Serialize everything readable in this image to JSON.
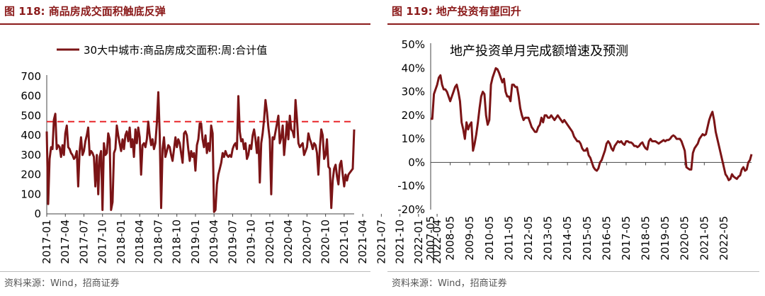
{
  "panels": [
    {
      "title": "图 118:  商品房成交面积触底反弹",
      "source": "资料来源：Wind，招商证券"
    },
    {
      "title": "图 119:  地产投资有望回升",
      "source": "资料来源：Wind，招商证券"
    }
  ],
  "colors": {
    "series": "#7b1416",
    "reference": "#e8262a",
    "title": "#8b1a1a"
  },
  "chart_data": [
    {
      "type": "line",
      "legend_position": "top",
      "series": [
        {
          "name": "30大中城市:商品房成交面积:周:合计值",
          "values": [
            420,
            50,
            280,
            340,
            330,
            480,
            510,
            330,
            350,
            340,
            290,
            350,
            300,
            410,
            450,
            340,
            330,
            310,
            300,
            280,
            290,
            320,
            140,
            320,
            390,
            300,
            320,
            370,
            400,
            440,
            300,
            320,
            310,
            290,
            140,
            300,
            100,
            290,
            320,
            20,
            360,
            300,
            310,
            410,
            380,
            20,
            60,
            310,
            330,
            450,
            400,
            360,
            320,
            380,
            330,
            400,
            420,
            370,
            440,
            340,
            380,
            290,
            430,
            360,
            440,
            390,
            200,
            350,
            360,
            340,
            380,
            470,
            400,
            350,
            380,
            330,
            360,
            460,
            620,
            400,
            30,
            330,
            390,
            290,
            320,
            350,
            340,
            300,
            270,
            330,
            390,
            340,
            380,
            360,
            310,
            260,
            410,
            420,
            400,
            330,
            270,
            320,
            290,
            310,
            220,
            350,
            380,
            460,
            460,
            380,
            340,
            400,
            310,
            360,
            320,
            450,
            410,
            10,
            20,
            150,
            200,
            230,
            260,
            310,
            290,
            320,
            300,
            290,
            300,
            290,
            330,
            350,
            360,
            330,
            600,
            420,
            370,
            380,
            330,
            360,
            280,
            300,
            350,
            330,
            400,
            430,
            380,
            310,
            390,
            160,
            360,
            410,
            480,
            580,
            520,
            440,
            380,
            100,
            390,
            380,
            420,
            460,
            500,
            360,
            390,
            450,
            300,
            380,
            470,
            380,
            500,
            430,
            420,
            390,
            580,
            480,
            360,
            340,
            350,
            360,
            300,
            320,
            340,
            410,
            380,
            360,
            330,
            360,
            350,
            310,
            200,
            340,
            430,
            400,
            280,
            300,
            380,
            240,
            230,
            30,
            170,
            230,
            250,
            190,
            150,
            250,
            270,
            200,
            140,
            200,
            170,
            200,
            210,
            220,
            230,
            430
          ]
        }
      ],
      "x_tick_labels": [
        "2017-01",
        "2017-04",
        "2017-07",
        "2017-10",
        "2018-01",
        "2018-04",
        "2018-07",
        "2018-10",
        "2019-01",
        "2019-04",
        "2019-07",
        "2019-10",
        "2020-01",
        "2020-04",
        "2020-07",
        "2020-10",
        "2021-01",
        "2021-04",
        "2021-07",
        "2021-10",
        "2022-01",
        "2022-04"
      ],
      "x_ticks_every": 13,
      "y_ticks": [
        0,
        100,
        200,
        300,
        400,
        500,
        600,
        700
      ],
      "ylim": [
        0,
        700
      ],
      "reference_line": 470
    },
    {
      "type": "line",
      "annotation": "地产投资单月完成额增速及预测",
      "series": [
        {
          "name": "",
          "values": [
            18.5,
            18.5,
            29,
            31,
            33,
            36,
            37,
            33,
            31,
            31,
            30,
            28,
            26,
            28,
            30,
            32,
            33,
            30,
            26,
            17,
            14,
            10,
            17,
            14,
            16,
            17,
            5,
            8,
            12,
            17,
            23,
            28,
            30,
            29,
            20,
            16,
            18,
            33,
            36,
            38,
            40,
            39.5,
            38,
            36,
            34,
            35.5,
            30,
            28,
            28,
            26,
            33,
            33,
            32,
            32,
            28,
            23,
            20,
            18,
            19,
            19,
            19,
            17,
            15,
            14,
            13,
            13,
            15,
            16,
            19,
            17,
            20,
            20,
            19,
            19,
            20,
            19,
            18,
            19,
            20,
            19,
            18,
            17,
            18,
            17,
            16,
            15,
            14,
            13,
            11,
            10,
            9,
            9,
            8,
            6,
            5,
            5,
            6,
            3,
            2,
            0,
            -2,
            -3,
            -3.5,
            -2.5,
            0,
            1,
            3,
            5,
            8,
            9,
            8,
            6,
            5,
            7,
            8,
            9,
            8.5,
            9,
            8,
            7.5,
            9,
            9,
            8.5,
            8.5,
            8,
            7,
            7,
            6.5,
            7,
            8,
            8.5,
            7,
            6,
            5.5,
            9,
            10,
            9,
            9,
            9,
            8.5,
            8,
            8.5,
            9,
            9.5,
            9,
            9.5,
            9.5,
            10,
            11,
            11.5,
            11,
            10,
            10,
            10,
            9,
            7,
            5,
            -2,
            -2.5,
            -3,
            -3,
            4,
            6,
            7,
            8,
            10,
            11,
            12,
            11.5,
            12,
            15,
            18,
            20,
            21.5,
            18,
            13,
            10,
            7,
            4,
            1,
            -2,
            -5,
            -6,
            -7.5,
            -7,
            -5,
            -6,
            -6.5,
            -7,
            -6,
            -5.5,
            -3,
            -2,
            -3.5,
            -3,
            0,
            1,
            3.5
          ]
        }
      ],
      "x_tick_labels": [
        "2007-05",
        "2008-05",
        "2009-05",
        "2010-05",
        "2011-05",
        "2012-05",
        "2013-05",
        "2014-05",
        "2015-05",
        "2016-05",
        "2017-05",
        "2018-05",
        "2019-05",
        "2020-05",
        "2021-05",
        "2022-05"
      ],
      "x_ticks_every": 12,
      "y_tick_labels": [
        "-20%",
        "-10%",
        "0%",
        "10%",
        "20%",
        "30%",
        "40%",
        "50%"
      ],
      "y_ticks": [
        -20,
        -10,
        0,
        10,
        20,
        30,
        40,
        50
      ],
      "ylim": [
        -20,
        50
      ]
    }
  ]
}
